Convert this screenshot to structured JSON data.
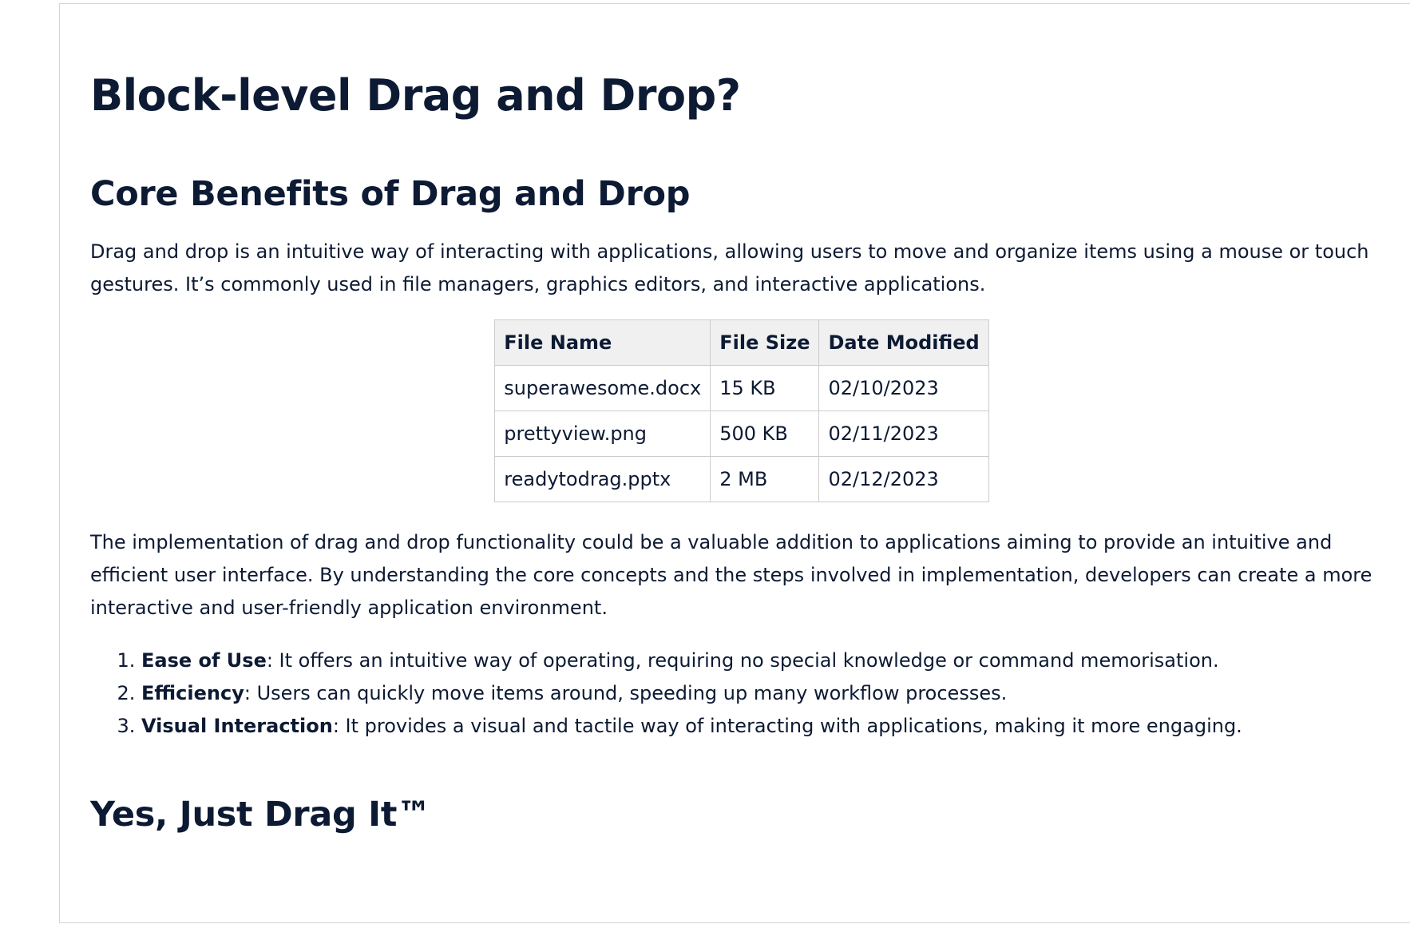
{
  "document": {
    "title": "Block-level Drag and Drop?",
    "section1_heading": "Core Benefits of Drag and Drop",
    "intro_paragraph": "Drag and drop is an intuitive way of interacting with applications, allowing users to move and organize items using a mouse or touch gestures. It’s commonly used in file managers, graphics editors, and interactive applications.",
    "table": {
      "headers": [
        "File Name",
        "File Size",
        "Date Modified"
      ],
      "rows": [
        [
          "superawesome.docx",
          "15 KB",
          "02/10/2023"
        ],
        [
          "prettyview.png",
          "500 KB",
          "02/11/2023"
        ],
        [
          "readytodrag.pptx",
          "2 MB",
          "02/12/2023"
        ]
      ]
    },
    "implementation_paragraph": "The implementation of drag and drop functionality could be a valuable addition to applications aiming to provide an intuitive and efficient user interface. By understanding the core concepts and the steps involved in implementation, developers can create a more interactive and user-friendly application environment.",
    "benefits": [
      {
        "term": "Ease of Use",
        "desc": ": It offers an intuitive way of operating, requiring no special knowledge or command memorisation."
      },
      {
        "term": "Efficiency",
        "desc": ": Users can quickly move items around, speeding up many workflow processes."
      },
      {
        "term": "Visual Interaction",
        "desc": ": It provides a visual and tactile way of interacting with applications, making it more engaging."
      }
    ],
    "section2_heading": "Yes, Just Drag It™"
  }
}
